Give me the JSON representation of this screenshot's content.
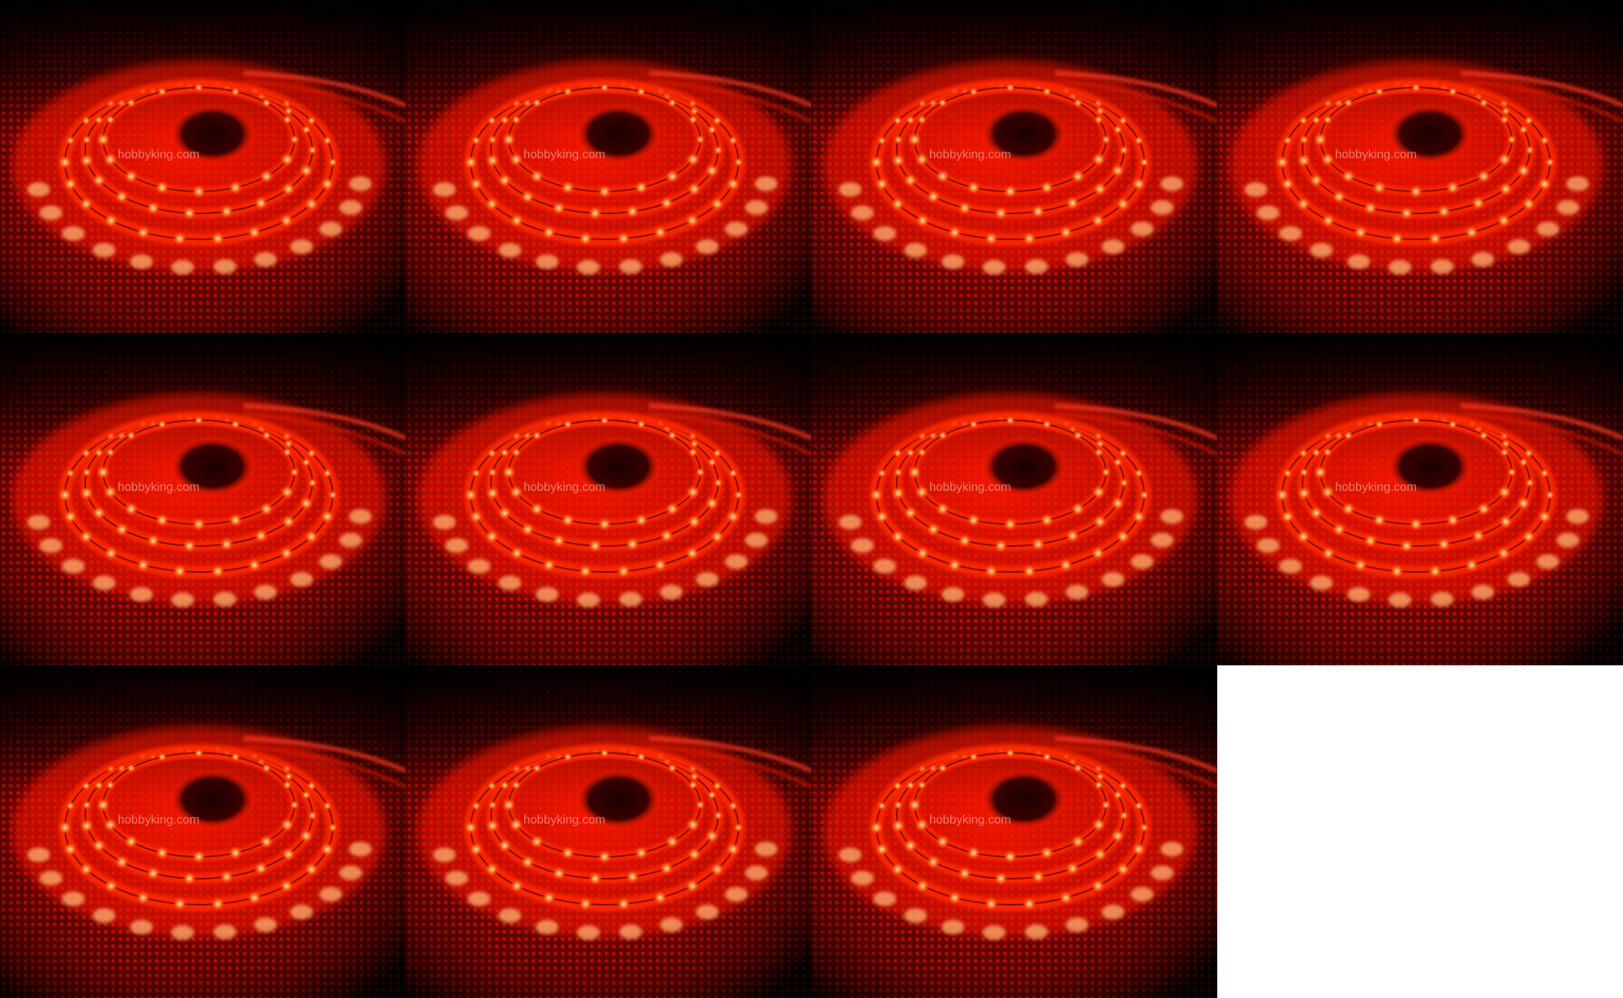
{
  "image": {
    "description_tag": "led-strip-reel-grid",
    "columns": 4,
    "rows": 3,
    "tile_count": 11,
    "empty_cell_color": "#ffffff",
    "glow_color": "#ff1a00",
    "hot_color": "#ffb070",
    "background_color": "#000000",
    "watermark": "hobbyking.com"
  }
}
